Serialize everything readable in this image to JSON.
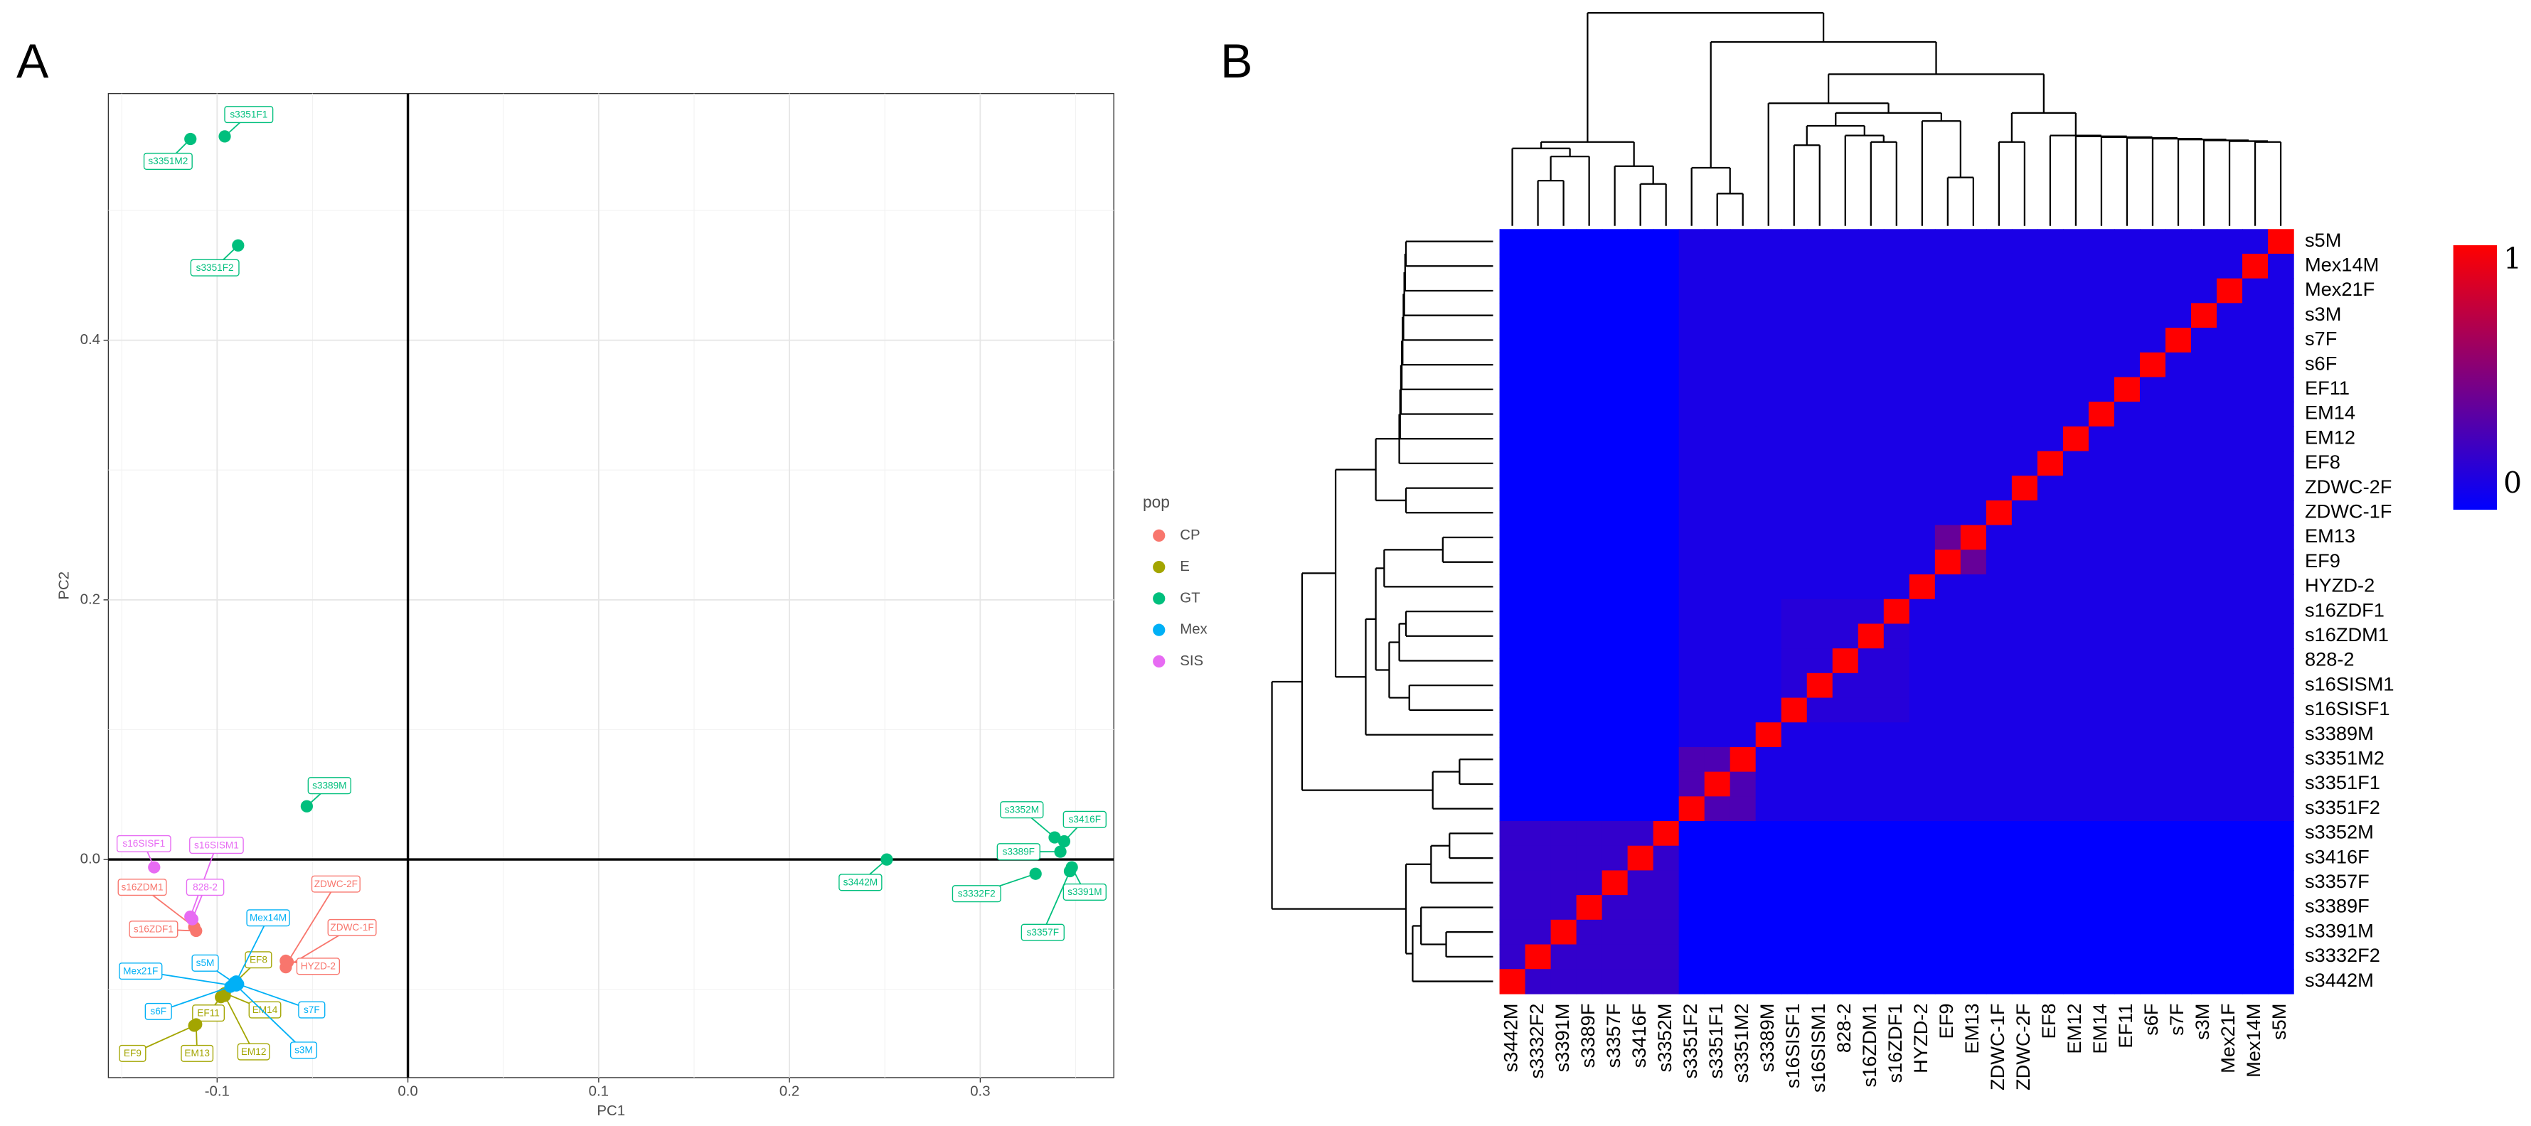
{
  "chart_data": [
    {
      "type": "scatter",
      "panel_label": "A",
      "xlabel": "PC1",
      "ylabel": "PC2",
      "legend_title": "pop",
      "grid": true,
      "xlim": [
        -0.157,
        0.37
      ],
      "ylim": [
        -0.168,
        0.59
      ],
      "xticks": [
        -0.1,
        {
          "value": 0,
          "label": "0.0"
        },
        0.1,
        0.2,
        0.3
      ],
      "yticks": [
        {
          "value": 0,
          "label": "0.0"
        },
        0.2,
        0.4
      ],
      "series": [
        {
          "name": "CP",
          "color": "#F8766D",
          "labels": [
            "s16ZDM1",
            "s16ZDF1",
            "ZDWC-2F",
            "ZDWC-1F",
            "HYZD-2"
          ],
          "x": [
            -0.112,
            -0.111,
            -0.063,
            -0.064,
            -0.064
          ],
          "y": [
            -0.052,
            -0.055,
            -0.079,
            -0.083,
            -0.078
          ]
        },
        {
          "name": "E",
          "color": "#A3A500",
          "labels": [
            "EF8",
            "EF11",
            "EM14",
            "EM12",
            "EF9",
            "EM13"
          ],
          "x": [
            -0.097,
            -0.098,
            -0.096,
            -0.096,
            -0.112,
            -0.111
          ],
          "y": [
            -0.104,
            -0.106,
            -0.103,
            -0.105,
            -0.128,
            -0.127
          ]
        },
        {
          "name": "GT",
          "color": "#00BF7D",
          "labels": [
            "s3351F1",
            "s3351M2",
            "s3351F2",
            "s3389M",
            "s3442M",
            "s3352M",
            "s3416F",
            "s3389F",
            "s3332F2",
            "s3391M",
            "s3357F"
          ],
          "x": [
            -0.096,
            -0.114,
            -0.089,
            -0.053,
            0.251,
            0.339,
            0.344,
            0.342,
            0.329,
            0.348,
            0.347
          ],
          "y": [
            0.557,
            0.555,
            0.473,
            0.041,
            0,
            0.017,
            0.014,
            0.006,
            -0.011,
            -0.006,
            -0.009
          ]
        },
        {
          "name": "Mex",
          "color": "#00B0F6",
          "labels": [
            "Mex14M",
            "s5M",
            "Mex21F",
            "s6F",
            "s7F",
            "s3M"
          ],
          "x": [
            -0.09,
            -0.091,
            -0.092,
            -0.093,
            -0.089,
            -0.09
          ],
          "y": [
            -0.094,
            -0.095,
            -0.097,
            -0.098,
            -0.096,
            -0.097
          ]
        },
        {
          "name": "SIS",
          "color": "#E76BF3",
          "labels": [
            "s16SISF1",
            "s16SISM1",
            "828-2"
          ],
          "x": [
            -0.133,
            -0.114,
            -0.113
          ],
          "y": [
            -0.006,
            -0.044,
            -0.046
          ]
        }
      ]
    },
    {
      "type": "heatmap",
      "panel_label": "B",
      "low_color": "#0000ff",
      "high_color": "#ff0000",
      "zlim": [
        0,
        1
      ],
      "zticks": [
        0,
        1
      ],
      "rows": [
        "s5M",
        "Mex14M",
        "Mex21F",
        "s3M",
        "s7F",
        "s6F",
        "EF11",
        "EM14",
        "EM12",
        "EF8",
        "ZDWC-2F",
        "ZDWC-1F",
        "EM13",
        "EF9",
        "HYZD-2",
        "s16ZDF1",
        "s16ZDM1",
        "828-2",
        "s16SISM1",
        "s16SISF1",
        "s3389M",
        "s3351M2",
        "s3351F1",
        "s3351F2",
        "s3352M",
        "s3416F",
        "s3357F",
        "s3389F",
        "s3391M",
        "s3332F2",
        "s3442M"
      ],
      "columns": [
        "s3442M",
        "s3332F2",
        "s3391M",
        "s3389F",
        "s3357F",
        "s3416F",
        "s3352M",
        "s3351F2",
        "s3351F1",
        "s3351M2",
        "s3389M",
        "s16SISF1",
        "s16SISM1",
        "828-2",
        "s16ZDM1",
        "s16ZDF1",
        "HYZD-2",
        "EF9",
        "EM13",
        "ZDWC-1F",
        "ZDWC-2F",
        "EF8",
        "EM12",
        "EM14",
        "EF11",
        "s6F",
        "s7F",
        "s3M",
        "Mex21F",
        "Mex14M",
        "s5M"
      ],
      "values": [
        [
          0,
          0,
          0,
          0,
          0,
          0,
          0,
          0.1,
          0.1,
          0.1,
          0.1,
          0.1,
          0.1,
          0.1,
          0.1,
          0.1,
          0.1,
          0.1,
          0.1,
          0.1,
          0.1,
          0.1,
          0.1,
          0.1,
          0.1,
          0.1,
          0.1,
          0.1,
          0.1,
          0.1,
          1
        ],
        [
          0,
          0,
          0,
          0,
          0,
          0,
          0,
          0.1,
          0.1,
          0.1,
          0.1,
          0.1,
          0.1,
          0.1,
          0.1,
          0.1,
          0.1,
          0.1,
          0.1,
          0.1,
          0.1,
          0.1,
          0.1,
          0.1,
          0.1,
          0.1,
          0.1,
          0.1,
          0.1,
          1,
          0.1
        ],
        [
          0,
          0,
          0,
          0,
          0,
          0,
          0,
          0.1,
          0.1,
          0.1,
          0.1,
          0.1,
          0.1,
          0.1,
          0.1,
          0.1,
          0.1,
          0.1,
          0.1,
          0.1,
          0.1,
          0.1,
          0.1,
          0.1,
          0.1,
          0.1,
          0.1,
          0.1,
          1,
          0.1,
          0.1
        ],
        [
          0,
          0,
          0,
          0,
          0,
          0,
          0,
          0.1,
          0.1,
          0.1,
          0.1,
          0.1,
          0.1,
          0.1,
          0.1,
          0.1,
          0.1,
          0.1,
          0.1,
          0.1,
          0.1,
          0.1,
          0.1,
          0.1,
          0.1,
          0.1,
          0.1,
          1,
          0.1,
          0.1,
          0.1
        ],
        [
          0,
          0,
          0,
          0,
          0,
          0,
          0,
          0.1,
          0.1,
          0.1,
          0.1,
          0.1,
          0.1,
          0.1,
          0.1,
          0.1,
          0.1,
          0.1,
          0.1,
          0.1,
          0.1,
          0.1,
          0.1,
          0.1,
          0.1,
          0.1,
          1,
          0.1,
          0.1,
          0.1,
          0.1
        ],
        [
          0,
          0,
          0,
          0,
          0,
          0,
          0,
          0.1,
          0.1,
          0.1,
          0.1,
          0.1,
          0.1,
          0.1,
          0.1,
          0.1,
          0.1,
          0.1,
          0.1,
          0.1,
          0.1,
          0.1,
          0.1,
          0.1,
          0.1,
          1,
          0.1,
          0.1,
          0.1,
          0.1,
          0.1
        ],
        [
          0,
          0,
          0,
          0,
          0,
          0,
          0,
          0.1,
          0.1,
          0.1,
          0.1,
          0.1,
          0.1,
          0.1,
          0.1,
          0.1,
          0.1,
          0.1,
          0.1,
          0.1,
          0.1,
          0.1,
          0.1,
          0.1,
          1,
          0.1,
          0.1,
          0.1,
          0.1,
          0.1,
          0.1
        ],
        [
          0,
          0,
          0,
          0,
          0,
          0,
          0,
          0.1,
          0.1,
          0.1,
          0.1,
          0.1,
          0.1,
          0.1,
          0.1,
          0.1,
          0.1,
          0.1,
          0.1,
          0.1,
          0.1,
          0.1,
          0.1,
          1,
          0.1,
          0.1,
          0.1,
          0.1,
          0.1,
          0.1,
          0.1
        ],
        [
          0,
          0,
          0,
          0,
          0,
          0,
          0,
          0.1,
          0.1,
          0.1,
          0.1,
          0.1,
          0.1,
          0.1,
          0.1,
          0.1,
          0.1,
          0.1,
          0.1,
          0.1,
          0.1,
          0.1,
          1,
          0.1,
          0.1,
          0.1,
          0.1,
          0.1,
          0.1,
          0.1,
          0.1
        ],
        [
          0,
          0,
          0,
          0,
          0,
          0,
          0,
          0.1,
          0.1,
          0.1,
          0.1,
          0.1,
          0.1,
          0.1,
          0.1,
          0.1,
          0.1,
          0.1,
          0.1,
          0.1,
          0.1,
          1,
          0.1,
          0.1,
          0.1,
          0.1,
          0.1,
          0.1,
          0.1,
          0.1,
          0.1
        ],
        [
          0,
          0,
          0,
          0,
          0,
          0,
          0,
          0.1,
          0.1,
          0.1,
          0.1,
          0.1,
          0.1,
          0.1,
          0.1,
          0.1,
          0.1,
          0.1,
          0.1,
          0.1,
          1,
          0.1,
          0.1,
          0.1,
          0.1,
          0.1,
          0.1,
          0.1,
          0.1,
          0.1,
          0.1
        ],
        [
          0,
          0,
          0,
          0,
          0,
          0,
          0,
          0.1,
          0.1,
          0.1,
          0.1,
          0.1,
          0.1,
          0.1,
          0.1,
          0.1,
          0.1,
          0.1,
          0.1,
          1,
          0.1,
          0.1,
          0.1,
          0.1,
          0.1,
          0.1,
          0.1,
          0.1,
          0.1,
          0.1,
          0.1
        ],
        [
          0,
          0,
          0,
          0,
          0,
          0,
          0,
          0.1,
          0.1,
          0.1,
          0.1,
          0.1,
          0.1,
          0.1,
          0.1,
          0.1,
          0.1,
          0.4,
          1,
          0.1,
          0.1,
          0.1,
          0.1,
          0.1,
          0.1,
          0.1,
          0.1,
          0.1,
          0.1,
          0.1,
          0.1
        ],
        [
          0,
          0,
          0,
          0,
          0,
          0,
          0,
          0.1,
          0.1,
          0.1,
          0.1,
          0.1,
          0.1,
          0.1,
          0.1,
          0.1,
          0.1,
          1,
          0.4,
          0.1,
          0.1,
          0.1,
          0.1,
          0.1,
          0.1,
          0.1,
          0.1,
          0.1,
          0.1,
          0.1,
          0.1
        ],
        [
          0,
          0,
          0,
          0,
          0,
          0,
          0,
          0.1,
          0.1,
          0.1,
          0.1,
          0.1,
          0.1,
          0.1,
          0.1,
          0.1,
          1,
          0.1,
          0.1,
          0.1,
          0.1,
          0.1,
          0.1,
          0.1,
          0.1,
          0.1,
          0.1,
          0.1,
          0.1,
          0.1,
          0.1
        ],
        [
          0,
          0,
          0,
          0,
          0,
          0,
          0,
          0.1,
          0.1,
          0.1,
          0.1,
          0.15,
          0.15,
          0.15,
          0.15,
          1,
          0.1,
          0.1,
          0.1,
          0.1,
          0.1,
          0.1,
          0.1,
          0.1,
          0.1,
          0.1,
          0.1,
          0.1,
          0.1,
          0.1,
          0.1
        ],
        [
          0,
          0,
          0,
          0,
          0,
          0,
          0,
          0.1,
          0.1,
          0.1,
          0.1,
          0.15,
          0.15,
          0.15,
          1,
          0.15,
          0.1,
          0.1,
          0.1,
          0.1,
          0.1,
          0.1,
          0.1,
          0.1,
          0.1,
          0.1,
          0.1,
          0.1,
          0.1,
          0.1,
          0.1
        ],
        [
          0,
          0,
          0,
          0,
          0,
          0,
          0,
          0.1,
          0.1,
          0.1,
          0.1,
          0.15,
          0.15,
          1,
          0.15,
          0.15,
          0.1,
          0.1,
          0.1,
          0.1,
          0.1,
          0.1,
          0.1,
          0.1,
          0.1,
          0.1,
          0.1,
          0.1,
          0.1,
          0.1,
          0.1
        ],
        [
          0,
          0,
          0,
          0,
          0,
          0,
          0,
          0.1,
          0.1,
          0.1,
          0.1,
          0.15,
          1,
          0.15,
          0.15,
          0.15,
          0.1,
          0.1,
          0.1,
          0.1,
          0.1,
          0.1,
          0.1,
          0.1,
          0.1,
          0.1,
          0.1,
          0.1,
          0.1,
          0.1,
          0.1
        ],
        [
          0,
          0,
          0,
          0,
          0,
          0,
          0,
          0.1,
          0.1,
          0.1,
          0.1,
          1,
          0.15,
          0.15,
          0.15,
          0.15,
          0.1,
          0.1,
          0.1,
          0.1,
          0.1,
          0.1,
          0.1,
          0.1,
          0.1,
          0.1,
          0.1,
          0.1,
          0.1,
          0.1,
          0.1
        ],
        [
          0,
          0,
          0,
          0,
          0,
          0,
          0,
          0.1,
          0.1,
          0.1,
          1,
          0.1,
          0.1,
          0.1,
          0.1,
          0.1,
          0.1,
          0.1,
          0.1,
          0.1,
          0.1,
          0.1,
          0.1,
          0.1,
          0.1,
          0.1,
          0.1,
          0.1,
          0.1,
          0.1,
          0.1
        ],
        [
          0,
          0,
          0,
          0,
          0,
          0,
          0,
          0.3,
          0.3,
          1,
          0.1,
          0.1,
          0.1,
          0.1,
          0.1,
          0.1,
          0.1,
          0.1,
          0.1,
          0.1,
          0.1,
          0.1,
          0.1,
          0.1,
          0.1,
          0.1,
          0.1,
          0.1,
          0.1,
          0.1,
          0.1
        ],
        [
          0,
          0,
          0,
          0,
          0,
          0,
          0,
          0.3,
          1,
          0.3,
          0.1,
          0.1,
          0.1,
          0.1,
          0.1,
          0.1,
          0.1,
          0.1,
          0.1,
          0.1,
          0.1,
          0.1,
          0.1,
          0.1,
          0.1,
          0.1,
          0.1,
          0.1,
          0.1,
          0.1,
          0.1
        ],
        [
          0,
          0,
          0,
          0,
          0,
          0,
          0,
          1,
          0.3,
          0.3,
          0.1,
          0.1,
          0.1,
          0.1,
          0.1,
          0.1,
          0.1,
          0.1,
          0.1,
          0.1,
          0.1,
          0.1,
          0.1,
          0.1,
          0.1,
          0.1,
          0.1,
          0.1,
          0.1,
          0.1,
          0.1
        ],
        [
          0.2,
          0.2,
          0.2,
          0.2,
          0.2,
          0.2,
          1,
          0,
          0,
          0,
          0,
          0,
          0,
          0,
          0,
          0,
          0,
          0,
          0,
          0,
          0,
          0,
          0,
          0,
          0,
          0,
          0,
          0,
          0,
          0,
          0
        ],
        [
          0.2,
          0.2,
          0.2,
          0.2,
          0.2,
          1,
          0.2,
          0,
          0,
          0,
          0,
          0,
          0,
          0,
          0,
          0,
          0,
          0,
          0,
          0,
          0,
          0,
          0,
          0,
          0,
          0,
          0,
          0,
          0,
          0,
          0
        ],
        [
          0.2,
          0.2,
          0.2,
          0.2,
          1,
          0.2,
          0.2,
          0,
          0,
          0,
          0,
          0,
          0,
          0,
          0,
          0,
          0,
          0,
          0,
          0,
          0,
          0,
          0,
          0,
          0,
          0,
          0,
          0,
          0,
          0,
          0
        ],
        [
          0.2,
          0.2,
          0.2,
          1,
          0.2,
          0.2,
          0.2,
          0,
          0,
          0,
          0,
          0,
          0,
          0,
          0,
          0,
          0,
          0,
          0,
          0,
          0,
          0,
          0,
          0,
          0,
          0,
          0,
          0,
          0,
          0,
          0
        ],
        [
          0.2,
          0.2,
          1,
          0.2,
          0.2,
          0.2,
          0.2,
          0,
          0,
          0,
          0,
          0,
          0,
          0,
          0,
          0,
          0,
          0,
          0,
          0,
          0,
          0,
          0,
          0,
          0,
          0,
          0,
          0,
          0,
          0,
          0
        ],
        [
          0.2,
          1,
          0.2,
          0.2,
          0.2,
          0.2,
          0.2,
          0,
          0,
          0,
          0,
          0,
          0,
          0,
          0,
          0,
          0,
          0,
          0,
          0,
          0,
          0,
          0,
          0,
          0,
          0,
          0,
          0,
          0,
          0,
          0
        ],
        [
          1,
          0.2,
          0.2,
          0.2,
          0.2,
          0.2,
          0.2,
          0,
          0,
          0,
          0,
          0,
          0,
          0,
          0,
          0,
          0,
          0,
          0,
          0,
          0,
          0,
          0,
          0,
          0,
          0,
          0,
          0,
          0,
          0,
          0
        ]
      ]
    }
  ]
}
